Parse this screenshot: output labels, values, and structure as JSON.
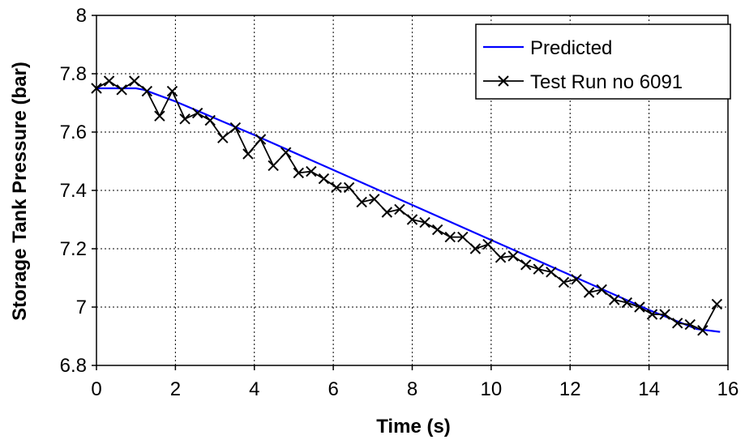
{
  "chart_data": {
    "type": "line",
    "xlabel": "Time (s)",
    "ylabel": "Storage Tank Pressure (bar)",
    "xlim": [
      0,
      16
    ],
    "ylim": [
      6.8,
      8
    ],
    "x_ticks": [
      "0",
      "2",
      "4",
      "6",
      "8",
      "10",
      "12",
      "14",
      "16"
    ],
    "y_ticks": [
      "6.8",
      "7",
      "7.2",
      "7.4",
      "7.6",
      "7.8",
      "8"
    ],
    "grid": true,
    "legend_position": "top-right",
    "series": [
      {
        "name": "Predicted",
        "color": "#0000ff",
        "marker": "none",
        "points": [
          [
            0,
            7.75
          ],
          [
            1.0,
            7.75
          ],
          [
            1.2,
            7.745
          ],
          [
            1.5,
            7.73
          ],
          [
            2.0,
            7.705
          ],
          [
            4.0,
            7.59
          ],
          [
            6.0,
            7.47
          ],
          [
            8.0,
            7.35
          ],
          [
            10.0,
            7.23
          ],
          [
            12.0,
            7.11
          ],
          [
            14.0,
            6.99
          ],
          [
            15.2,
            6.925
          ],
          [
            15.8,
            6.915
          ]
        ]
      },
      {
        "name": "Test Run no 6091",
        "color": "#000000",
        "marker": "x",
        "points": [
          [
            0.0,
            7.75
          ],
          [
            0.32,
            7.775
          ],
          [
            0.64,
            7.745
          ],
          [
            0.96,
            7.775
          ],
          [
            1.28,
            7.74
          ],
          [
            1.6,
            7.655
          ],
          [
            1.92,
            7.74
          ],
          [
            2.24,
            7.645
          ],
          [
            2.56,
            7.665
          ],
          [
            2.88,
            7.64
          ],
          [
            3.2,
            7.58
          ],
          [
            3.52,
            7.615
          ],
          [
            3.84,
            7.525
          ],
          [
            4.16,
            7.575
          ],
          [
            4.48,
            7.485
          ],
          [
            4.8,
            7.53
          ],
          [
            5.12,
            7.46
          ],
          [
            5.44,
            7.465
          ],
          [
            5.76,
            7.44
          ],
          [
            6.08,
            7.41
          ],
          [
            6.4,
            7.41
          ],
          [
            6.72,
            7.36
          ],
          [
            7.04,
            7.37
          ],
          [
            7.36,
            7.325
          ],
          [
            7.68,
            7.335
          ],
          [
            8.0,
            7.3
          ],
          [
            8.32,
            7.29
          ],
          [
            8.64,
            7.265
          ],
          [
            8.96,
            7.24
          ],
          [
            9.28,
            7.24
          ],
          [
            9.6,
            7.2
          ],
          [
            9.92,
            7.215
          ],
          [
            10.24,
            7.17
          ],
          [
            10.56,
            7.175
          ],
          [
            10.88,
            7.145
          ],
          [
            11.2,
            7.13
          ],
          [
            11.52,
            7.12
          ],
          [
            11.84,
            7.085
          ],
          [
            12.16,
            7.095
          ],
          [
            12.48,
            7.05
          ],
          [
            12.8,
            7.06
          ],
          [
            13.12,
            7.025
          ],
          [
            13.44,
            7.015
          ],
          [
            13.76,
            7.0
          ],
          [
            14.08,
            6.975
          ],
          [
            14.4,
            6.975
          ],
          [
            14.72,
            6.945
          ],
          [
            15.04,
            6.94
          ],
          [
            15.36,
            6.92
          ],
          [
            15.72,
            7.01
          ]
        ]
      }
    ]
  }
}
